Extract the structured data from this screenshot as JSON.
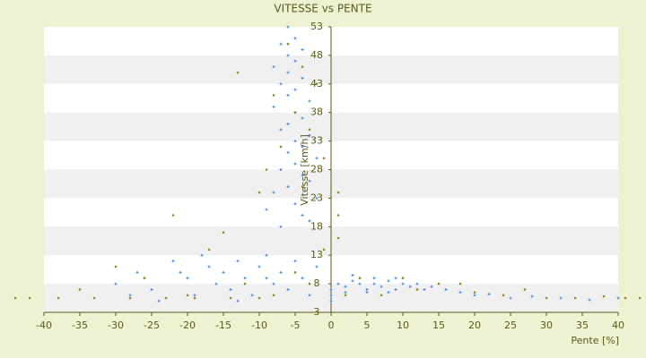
{
  "chart_data": {
    "type": "scatter",
    "title": "VITESSE vs PENTE",
    "x_label": "Pente [%]",
    "y_label": "Vitesse [km/h]",
    "xlim": [
      -40,
      40
    ],
    "xticks": [
      -40,
      -35,
      -30,
      -25,
      -20,
      -15,
      -10,
      -5,
      0,
      5,
      10,
      15,
      20,
      25,
      30,
      35,
      40
    ],
    "ylim": [
      3,
      53
    ],
    "yticks": [
      3,
      8,
      13,
      18,
      23,
      28,
      33,
      38,
      43,
      48,
      53
    ],
    "grid": true,
    "band_color": "#f0f0f0",
    "series": [
      {
        "color": "#3a8ad8",
        "marker": "plus",
        "x": [
          -6,
          -5,
          -7,
          -4,
          -6,
          -5,
          -8,
          -6,
          -4,
          -7,
          -5,
          -6,
          -3,
          -8,
          -5,
          -4,
          -6,
          -7,
          -3,
          -5,
          -4,
          -6,
          -2,
          -5,
          -7,
          -4,
          -3,
          -6,
          -8,
          -2,
          -5,
          -9,
          -4,
          -3,
          -7,
          -30,
          -27,
          -25,
          -22,
          -20,
          -19,
          -17,
          -16,
          -15,
          -14,
          -13,
          -12,
          -11,
          -10,
          -9,
          -8,
          -7,
          -6,
          -5,
          -4,
          -3,
          -2,
          -24,
          -18,
          -13,
          -9,
          -28,
          -21,
          1,
          2,
          3,
          4,
          5,
          6,
          7,
          8,
          9,
          10,
          11,
          12,
          13,
          14,
          3,
          6,
          9,
          2,
          5,
          8,
          16,
          18,
          20,
          22,
          25,
          28,
          32,
          36,
          40,
          0,
          0,
          0
        ],
        "values": [
          53,
          51,
          50,
          49,
          48,
          47,
          46,
          45,
          44,
          43,
          42,
          41,
          40,
          39,
          38,
          37,
          36,
          35,
          34,
          33,
          32,
          31,
          30,
          29,
          28,
          27,
          26,
          25,
          24,
          23,
          22,
          21,
          20,
          19,
          18,
          8,
          10,
          7,
          12,
          9,
          6,
          11,
          8,
          10,
          7,
          12,
          9,
          6,
          11,
          13,
          8,
          10,
          7,
          12,
          9,
          6,
          11,
          5,
          13,
          5,
          9,
          6,
          10,
          8,
          7.5,
          8.5,
          8,
          7,
          8,
          7.5,
          8.5,
          7,
          8,
          7.5,
          8,
          7,
          7.5,
          9.5,
          9,
          9,
          6.5,
          6.5,
          6.5,
          7,
          6.5,
          6,
          6.2,
          5.5,
          5.8,
          5.5,
          5.2,
          5.5,
          5,
          6,
          7
        ]
      },
      {
        "color": "#8c8c1e",
        "marker": "dot",
        "x": [
          -6,
          -4,
          -13,
          -8,
          -2,
          -5,
          -3,
          -7,
          -1,
          -9,
          -4,
          -10,
          -22,
          -15,
          -17,
          -30,
          -35,
          -26,
          -20,
          -12,
          -8,
          -5,
          -3,
          -1,
          1,
          1,
          1,
          -44,
          -42,
          -38,
          -33,
          -28,
          -23,
          -19,
          -14,
          -10,
          2,
          4,
          7,
          10,
          12,
          15,
          18,
          20,
          24,
          27,
          30,
          34,
          38,
          41,
          43
        ],
        "values": [
          50,
          46,
          45,
          41,
          43,
          38,
          35,
          32,
          30,
          28,
          25,
          24,
          20,
          17,
          14,
          11,
          7,
          9,
          6,
          8,
          6,
          10,
          8,
          14,
          20,
          16,
          24,
          5.5,
          5.5,
          5.5,
          5.5,
          5.5,
          5.5,
          5.5,
          5.5,
          5.5,
          6,
          9,
          6,
          9,
          7,
          8,
          8,
          6.5,
          6,
          7,
          5.5,
          5.5,
          5.8,
          5.5,
          5.5
        ]
      }
    ]
  }
}
